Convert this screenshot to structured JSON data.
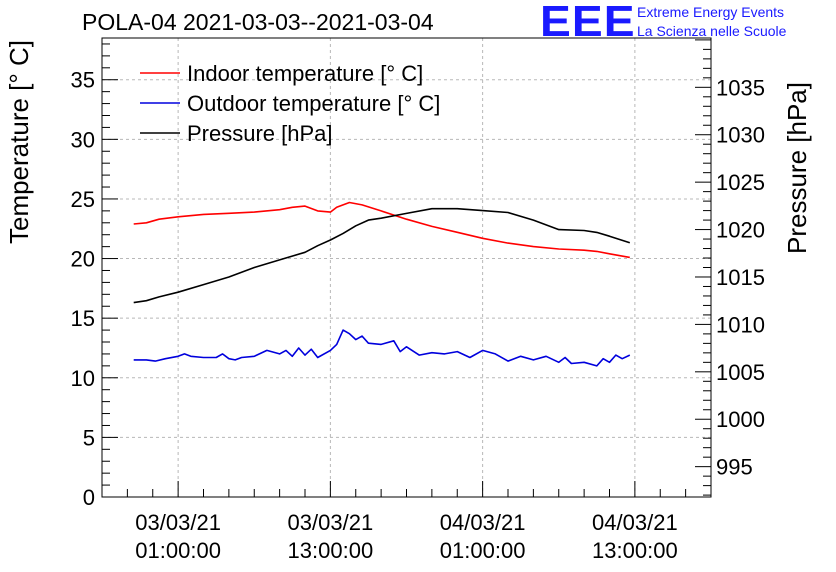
{
  "header": {
    "title": "POLA-04 2021-03-03--2021-03-04",
    "brand_logo": "EEE",
    "brand_line1": "Extreme Energy Events",
    "brand_line2": "La Scienza nelle Scuole"
  },
  "colors": {
    "indoor": "#ff0000",
    "outdoor": "#0000dd",
    "pressure": "#000000",
    "brand": "#1a1aff"
  },
  "chart_data": {
    "type": "line",
    "title": "POLA-04 2021-03-03--2021-03-04",
    "ylabel": "Temperature [° C]",
    "y2label": "Pressure [hPa]",
    "ylim": [
      0,
      38.5
    ],
    "y2lim": [
      991.8,
      1040.2
    ],
    "xlim": [
      -6,
      42
    ],
    "grid": true,
    "legend": "top-left",
    "y_ticks": [
      0,
      5,
      10,
      15,
      20,
      25,
      30,
      35
    ],
    "y_tick_labels": [
      "0",
      "5",
      "10",
      "15",
      "20",
      "25",
      "30",
      "35"
    ],
    "y2_ticks": [
      995,
      1000,
      1005,
      1010,
      1015,
      1020,
      1025,
      1030,
      1035
    ],
    "y2_tick_labels": [
      "995",
      "1000",
      "1005",
      "1010",
      "1015",
      "1020",
      "1025",
      "1030",
      "1035"
    ],
    "x_ticks": [
      0,
      12,
      24,
      36
    ],
    "x_tick_labels": [
      [
        "03/03/21",
        "01:00:00"
      ],
      [
        "03/03/21",
        "13:00:00"
      ],
      [
        "04/03/21",
        "01:00:00"
      ],
      [
        "04/03/21",
        "13:00:00"
      ]
    ],
    "series": [
      {
        "name": "Indoor temperature [° C]",
        "axis": "left",
        "x": [
          -3.5,
          -2.5,
          -1.5,
          0,
          2,
          4,
          6,
          8,
          9,
          10,
          11,
          12,
          12.5,
          13.5,
          14.5,
          16,
          18,
          20,
          22,
          24,
          26,
          28,
          30,
          32,
          33,
          34,
          35.6
        ],
        "values": [
          22.9,
          23.0,
          23.3,
          23.5,
          23.7,
          23.8,
          23.9,
          24.1,
          24.3,
          24.4,
          24.0,
          23.9,
          24.3,
          24.7,
          24.5,
          24.0,
          23.3,
          22.7,
          22.2,
          21.7,
          21.3,
          21.0,
          20.8,
          20.7,
          20.6,
          20.4,
          20.1
        ]
      },
      {
        "name": "Outdoor temperature [° C]",
        "axis": "left",
        "x": [
          -3.5,
          -2.5,
          -1.8,
          -1,
          0,
          0.5,
          1,
          2,
          3,
          3.5,
          4,
          4.5,
          5,
          6,
          7,
          8,
          8.5,
          9,
          9.5,
          10,
          10.5,
          11,
          12,
          12.5,
          13,
          13.5,
          14,
          14.5,
          15,
          16,
          17,
          17.5,
          18,
          19,
          20,
          21,
          22,
          23,
          24,
          25,
          26,
          27,
          28,
          29,
          30,
          30.5,
          31,
          32,
          33,
          33.5,
          34,
          34.5,
          35,
          35.6
        ],
        "values": [
          11.5,
          11.5,
          11.4,
          11.6,
          11.8,
          12.0,
          11.8,
          11.7,
          11.7,
          12.0,
          11.6,
          11.5,
          11.7,
          11.8,
          12.3,
          12.0,
          12.3,
          11.8,
          12.5,
          11.9,
          12.4,
          11.7,
          12.3,
          12.8,
          14.0,
          13.7,
          13.2,
          13.5,
          12.9,
          12.8,
          13.1,
          12.2,
          12.6,
          11.9,
          12.1,
          12.0,
          12.2,
          11.7,
          12.3,
          12.0,
          11.4,
          11.8,
          11.5,
          11.8,
          11.3,
          11.7,
          11.2,
          11.3,
          11.0,
          11.6,
          11.3,
          11.9,
          11.6,
          11.9
        ]
      },
      {
        "name": "Pressure [hPa]",
        "axis": "right",
        "x": [
          -3.5,
          -2.5,
          -1.5,
          0,
          2,
          4,
          6,
          8,
          10,
          11,
          12,
          13,
          14,
          15,
          16,
          18,
          20,
          22,
          24,
          26,
          28,
          30,
          32,
          33,
          34,
          35.6
        ],
        "values": [
          1012.3,
          1012.5,
          1012.9,
          1013.4,
          1014.2,
          1015.0,
          1016.0,
          1016.8,
          1017.6,
          1018.3,
          1018.9,
          1019.6,
          1020.4,
          1021.0,
          1021.2,
          1021.7,
          1022.2,
          1022.2,
          1022.0,
          1021.8,
          1021.0,
          1020.0,
          1019.9,
          1019.7,
          1019.3,
          1018.6
        ]
      }
    ]
  }
}
